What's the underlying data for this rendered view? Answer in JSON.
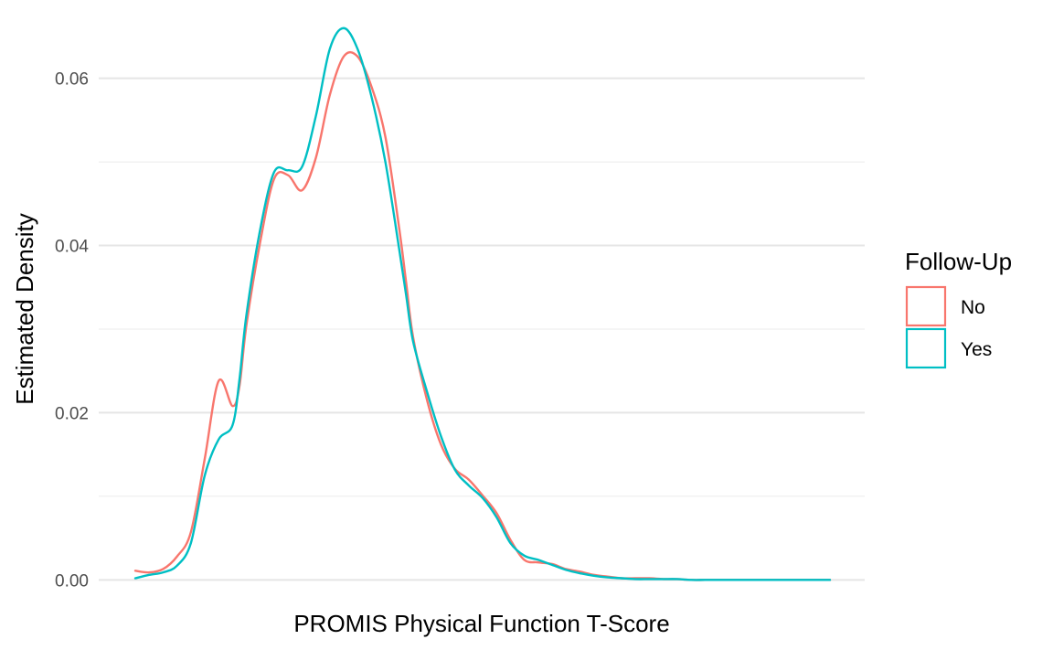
{
  "chart_data": {
    "type": "area",
    "xlabel": "PROMIS Physical Function T-Score",
    "ylabel": "Estimated Density",
    "x_ticks_shown": false,
    "xlim": [
      0,
      100
    ],
    "ylim": [
      -0.0004,
      0.0663
    ],
    "y_ticks": [
      0.0,
      0.02,
      0.04,
      0.06
    ],
    "y_tick_labels": [
      "0.00",
      "0.02",
      "0.04",
      "0.06"
    ],
    "y_minor_ticks": [
      0.01,
      0.03,
      0.05
    ],
    "grid": true,
    "legend": {
      "title": "Follow-Up",
      "position": "right"
    },
    "series": [
      {
        "name": "No",
        "color": "#F8766D",
        "x": [
          0,
          2,
          4,
          6,
          8,
          10,
          12,
          14,
          15,
          16,
          18,
          20,
          22,
          24,
          26,
          28,
          30,
          32,
          34,
          36,
          38,
          39,
          40,
          42,
          44,
          46,
          48,
          50,
          52,
          54,
          56,
          58,
          60,
          62,
          64,
          66,
          68,
          70,
          72,
          74,
          76,
          78,
          80,
          82,
          84,
          86,
          88,
          90,
          92,
          94,
          96,
          98,
          100
        ],
        "y": [
          0.0011,
          0.0009,
          0.0013,
          0.0028,
          0.0057,
          0.0145,
          0.0238,
          0.0208,
          0.0232,
          0.0305,
          0.0405,
          0.048,
          0.0484,
          0.0466,
          0.0505,
          0.058,
          0.0626,
          0.0626,
          0.059,
          0.053,
          0.042,
          0.0355,
          0.029,
          0.0215,
          0.0162,
          0.0133,
          0.012,
          0.0101,
          0.008,
          0.0048,
          0.0024,
          0.0021,
          0.0019,
          0.0013,
          0.001,
          0.0006,
          0.0004,
          0.0002,
          0.0002,
          0.0002,
          0.0001,
          0.0001,
          0.0,
          0.0,
          0.0,
          0.0,
          0.0,
          0.0,
          0.0,
          0.0,
          0.0,
          0.0,
          0.0
        ]
      },
      {
        "name": "Yes",
        "color": "#00BFC4",
        "x": [
          0,
          2,
          4,
          6,
          8,
          10,
          12,
          14,
          15,
          16,
          18,
          20,
          22,
          24,
          26,
          28,
          30,
          32,
          34,
          36,
          38,
          39,
          40,
          42,
          44,
          46,
          48,
          50,
          52,
          54,
          56,
          58,
          60,
          62,
          64,
          66,
          68,
          70,
          72,
          74,
          76,
          78,
          80,
          82,
          84,
          86,
          88,
          90,
          92,
          94,
          96,
          98,
          100
        ],
        "y": [
          0.0002,
          0.0006,
          0.0009,
          0.0017,
          0.0044,
          0.0125,
          0.0168,
          0.0185,
          0.024,
          0.0317,
          0.042,
          0.0488,
          0.049,
          0.0494,
          0.0555,
          0.0635,
          0.066,
          0.0635,
          0.0578,
          0.05,
          0.0395,
          0.034,
          0.0285,
          0.0225,
          0.0172,
          0.0132,
          0.0113,
          0.0098,
          0.0075,
          0.0044,
          0.0029,
          0.0024,
          0.0018,
          0.0012,
          0.0008,
          0.0005,
          0.0003,
          0.0002,
          0.0001,
          0.0001,
          0.0001,
          0.0001,
          0.0,
          0.0,
          0.0,
          0.0,
          0.0,
          0.0,
          0.0,
          0.0,
          0.0,
          0.0,
          0.0
        ]
      }
    ]
  }
}
